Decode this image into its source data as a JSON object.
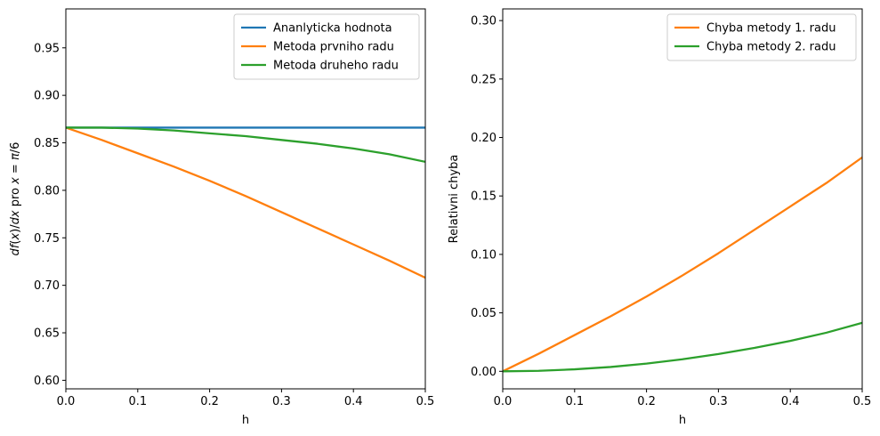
{
  "chart_data": [
    {
      "type": "line",
      "xlabel": "h",
      "ylabel_parts": [
        "df",
        "(",
        "x",
        ")/",
        "dx",
        " pro ",
        "x",
        " = ",
        "π",
        "/6"
      ],
      "xlim": [
        0,
        0.5
      ],
      "ylim": [
        0.591,
        0.991
      ],
      "xticks": [
        0.0,
        0.1,
        0.2,
        0.3,
        0.4,
        0.5
      ],
      "xtick_labels": [
        "0.0",
        "0.1",
        "0.2",
        "0.3",
        "0.4",
        "0.5"
      ],
      "yticks": [
        0.6,
        0.65,
        0.7,
        0.75,
        0.8,
        0.85,
        0.9,
        0.95
      ],
      "ytick_labels": [
        "0.60",
        "0.65",
        "0.70",
        "0.75",
        "0.80",
        "0.85",
        "0.90",
        "0.95"
      ],
      "legend_position": "top-right",
      "x": [
        0.0,
        0.05,
        0.1,
        0.15,
        0.2,
        0.25,
        0.3,
        0.35,
        0.4,
        0.45,
        0.5
      ],
      "series": [
        {
          "name": "Ananlyticka hodnota",
          "color": "#1f77b4",
          "values": [
            0.866,
            0.866,
            0.866,
            0.866,
            0.866,
            0.866,
            0.866,
            0.866,
            0.866,
            0.866,
            0.866
          ]
        },
        {
          "name": "Metoda prvniho radu",
          "color": "#ff7f0e",
          "values": [
            0.866,
            0.853,
            0.839,
            0.825,
            0.81,
            0.794,
            0.777,
            0.76,
            0.743,
            0.726,
            0.708
          ]
        },
        {
          "name": "Metoda druheho radu",
          "color": "#2ca02c",
          "values": [
            0.866,
            0.866,
            0.865,
            0.863,
            0.86,
            0.857,
            0.853,
            0.849,
            0.844,
            0.838,
            0.83
          ]
        }
      ]
    },
    {
      "type": "line",
      "xlabel": "h",
      "ylabel": "Relativni chyba",
      "xlim": [
        0,
        0.5
      ],
      "ylim": [
        -0.015,
        0.31
      ],
      "xticks": [
        0.0,
        0.1,
        0.2,
        0.3,
        0.4,
        0.5
      ],
      "xtick_labels": [
        "0.0",
        "0.1",
        "0.2",
        "0.3",
        "0.4",
        "0.5"
      ],
      "yticks": [
        0.0,
        0.05,
        0.1,
        0.15,
        0.2,
        0.25,
        0.3
      ],
      "ytick_labels": [
        "0.00",
        "0.05",
        "0.10",
        "0.15",
        "0.20",
        "0.25",
        "0.30"
      ],
      "legend_position": "top-right",
      "x": [
        0.0,
        0.05,
        0.1,
        0.15,
        0.2,
        0.25,
        0.3,
        0.35,
        0.4,
        0.45,
        0.5
      ],
      "series": [
        {
          "name": "Chyba metody 1. radu",
          "color": "#ff7f0e",
          "values": [
            0.0,
            0.015,
            0.031,
            0.047,
            0.064,
            0.082,
            0.101,
            0.121,
            0.141,
            0.161,
            0.183
          ]
        },
        {
          "name": "Chyba metody 2. radu",
          "color": "#2ca02c",
          "values": [
            0.0,
            0.0004,
            0.0017,
            0.0037,
            0.0066,
            0.0103,
            0.0148,
            0.02,
            0.026,
            0.033,
            0.0415
          ]
        }
      ]
    }
  ]
}
